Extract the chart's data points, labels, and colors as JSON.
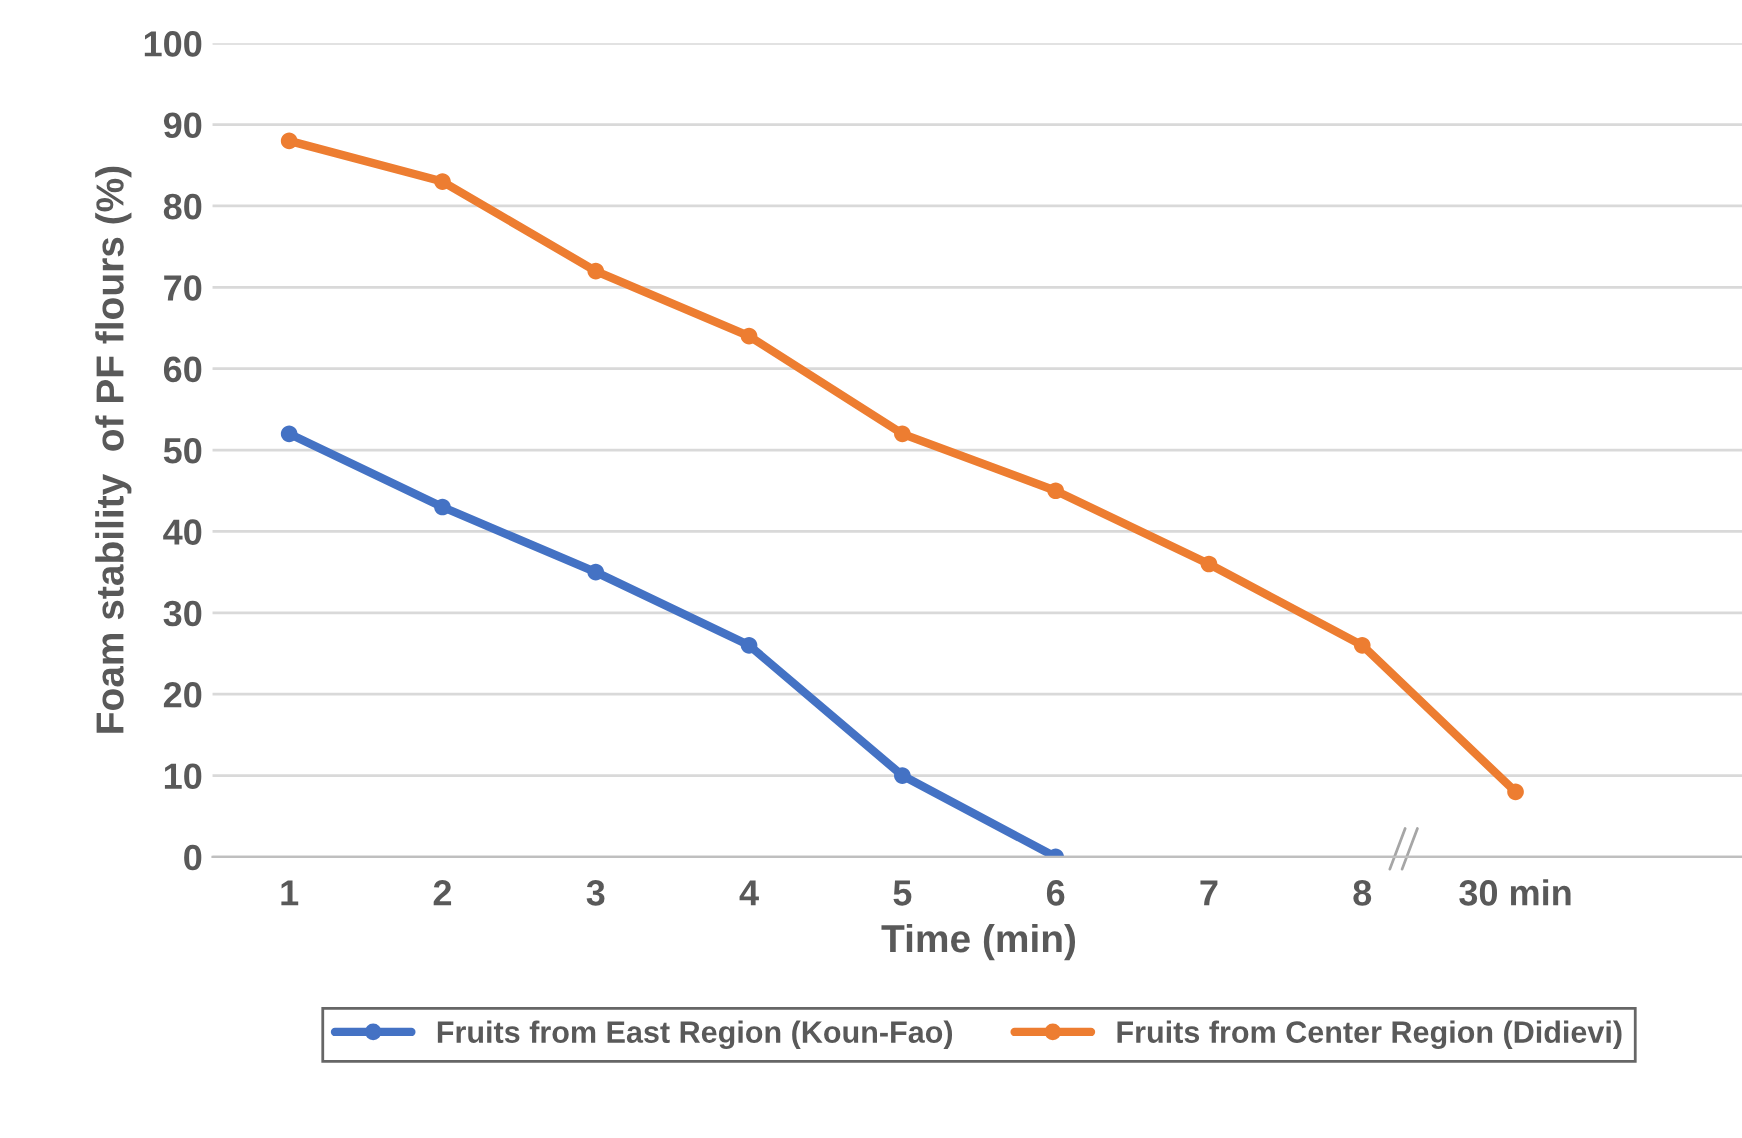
{
  "chart_data": {
    "type": "line",
    "xlabel": "Time (min)",
    "ylabel": "Foam stability  of PF flours (%)",
    "categories": [
      "1",
      "2",
      "3",
      "4",
      "5",
      "6",
      "7",
      "8",
      "30 min",
      null
    ],
    "series": [
      {
        "name": "Fruits from East Region (Koun-Fao)",
        "color": "#4472c4",
        "values": [
          52,
          43,
          35,
          26,
          10,
          0,
          null,
          null,
          null,
          null
        ]
      },
      {
        "name": "Fruits from Center Region (Didievi)",
        "color": "#ed7d31",
        "values": [
          88,
          83,
          72,
          64,
          52,
          45,
          36,
          26,
          8,
          null
        ]
      }
    ],
    "ylim": [
      0,
      100
    ],
    "yticks": [
      0,
      10,
      20,
      30,
      40,
      50,
      60,
      70,
      80,
      90,
      100
    ],
    "grid": "y",
    "legend": "bottom",
    "marker": "circle",
    "line_style": "solid"
  }
}
